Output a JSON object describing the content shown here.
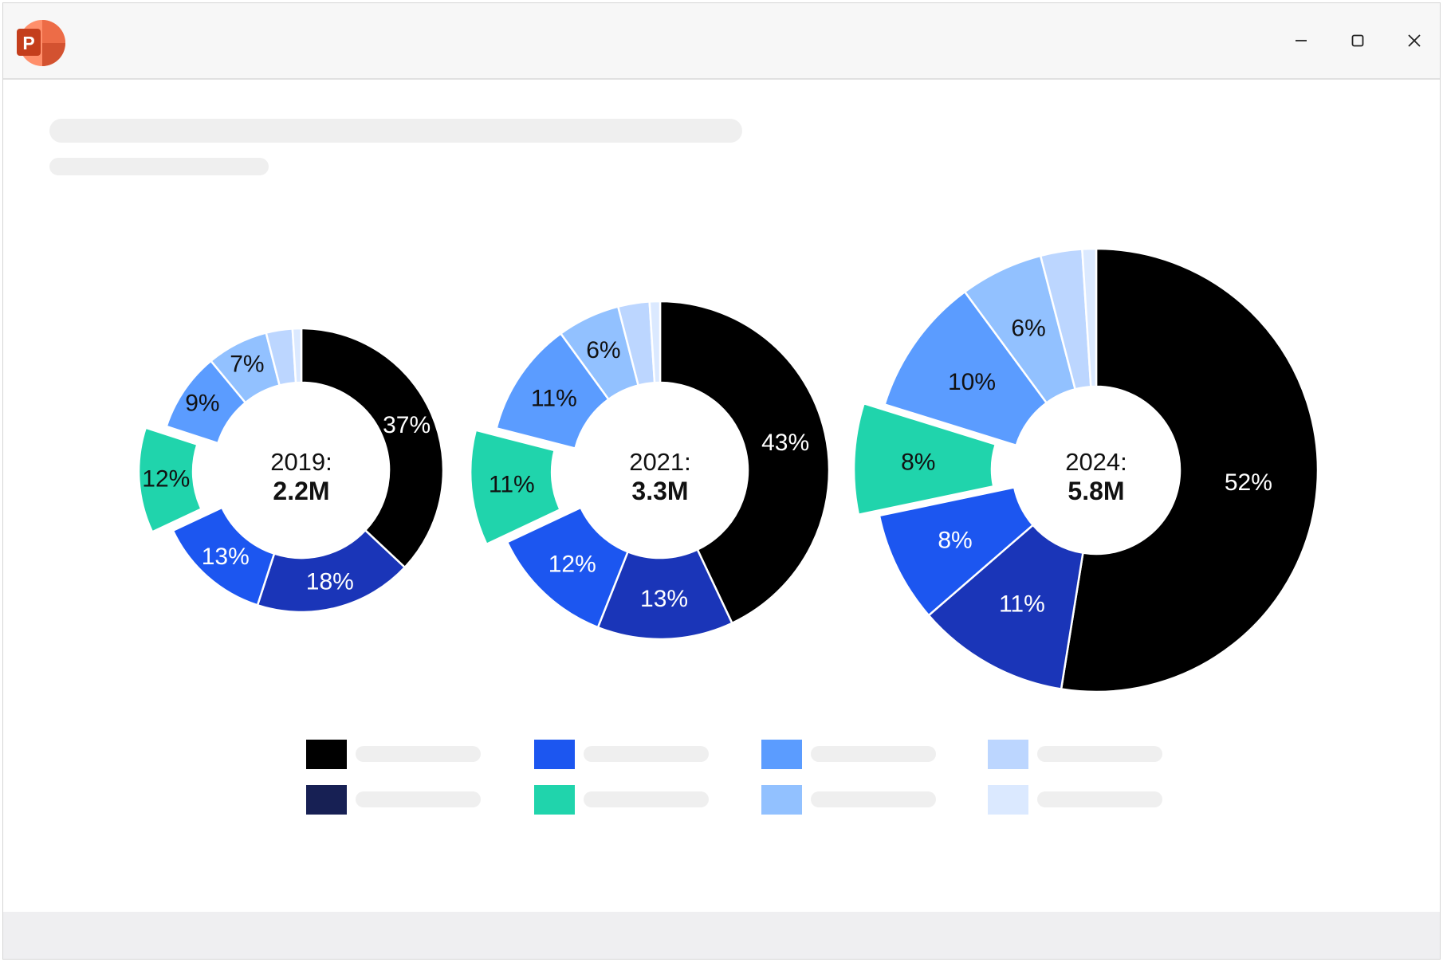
{
  "window": {
    "app_icon": "powerpoint-icon",
    "app_icon_letter": "P",
    "controls": [
      "minimize-icon",
      "maximize-icon",
      "close-icon"
    ]
  },
  "colors": {
    "black": "#000000",
    "navy": "#172054",
    "dark_blue": "#1a35b8",
    "blue": "#1c56f0",
    "mid_blue": "#5b9cff",
    "light_blue": "#92c1ff",
    "pale_blue": "#bcd6ff",
    "faint_blue": "#dbe9ff",
    "teal": "#20d4ac"
  },
  "chart_data": [
    {
      "type": "pie",
      "variant": "donut",
      "center_label": {
        "year": "2019:",
        "value": "2.2M"
      },
      "total": 2.2,
      "slices": [
        {
          "value": 37,
          "label": "37%",
          "color": "#000000"
        },
        {
          "value": 18,
          "label": "18%",
          "color": "#1a35b8"
        },
        {
          "value": 13,
          "label": "13%",
          "color": "#1c56f0"
        },
        {
          "value": 12,
          "label": "12%",
          "color": "#20d4ac",
          "exploded": true
        },
        {
          "value": 9,
          "label": "9%",
          "color": "#5b9cff"
        },
        {
          "value": 7,
          "label": "7%",
          "color": "#92c1ff"
        },
        {
          "value": 3,
          "label": "",
          "color": "#bcd6ff"
        },
        {
          "value": 1,
          "label": "",
          "color": "#dbe9ff"
        }
      ]
    },
    {
      "type": "pie",
      "variant": "donut",
      "center_label": {
        "year": "2021:",
        "value": "3.3M"
      },
      "total": 3.3,
      "slices": [
        {
          "value": 43,
          "label": "43%",
          "color": "#000000"
        },
        {
          "value": 13,
          "label": "13%",
          "color": "#1a35b8"
        },
        {
          "value": 12,
          "label": "12%",
          "color": "#1c56f0"
        },
        {
          "value": 11,
          "label": "11%",
          "color": "#20d4ac",
          "exploded": true
        },
        {
          "value": 11,
          "label": "11%",
          "color": "#5b9cff"
        },
        {
          "value": 6,
          "label": "6%",
          "color": "#92c1ff"
        },
        {
          "value": 3,
          "label": "",
          "color": "#bcd6ff"
        },
        {
          "value": 1,
          "label": "",
          "color": "#dbe9ff"
        }
      ]
    },
    {
      "type": "pie",
      "variant": "donut",
      "center_label": {
        "year": "2024:",
        "value": "5.8M"
      },
      "total": 5.8,
      "slices": [
        {
          "value": 52,
          "label": "52%",
          "color": "#000000"
        },
        {
          "value": 11,
          "label": "11%",
          "color": "#1a35b8"
        },
        {
          "value": 8,
          "label": "8%",
          "color": "#1c56f0"
        },
        {
          "value": 8,
          "label": "8%",
          "color": "#20d4ac",
          "exploded": true
        },
        {
          "value": 10,
          "label": "10%",
          "color": "#5b9cff"
        },
        {
          "value": 6,
          "label": "6%",
          "color": "#92c1ff"
        },
        {
          "value": 3,
          "label": "",
          "color": "#bcd6ff"
        },
        {
          "value": 1,
          "label": "",
          "color": "#dbe9ff"
        }
      ]
    }
  ],
  "legend": {
    "placement": "bottom",
    "entries": [
      {
        "color": "#000000"
      },
      {
        "color": "#1c56f0"
      },
      {
        "color": "#5b9cff"
      },
      {
        "color": "#bcd6ff"
      },
      {
        "color": "#172054"
      },
      {
        "color": "#20d4ac"
      },
      {
        "color": "#92c1ff"
      },
      {
        "color": "#dbe9ff"
      }
    ]
  }
}
